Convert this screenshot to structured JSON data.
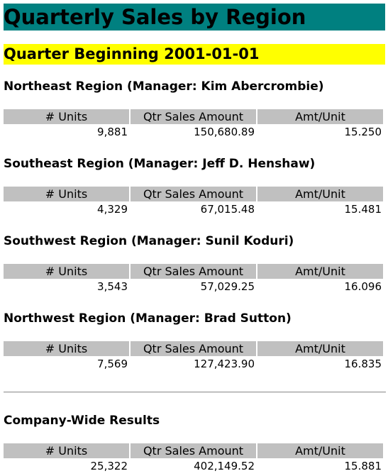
{
  "title": "Quarterly Sales by Region",
  "quarter": "Quarter Beginning 2001-01-01",
  "columns": [
    "# Units",
    "Qtr Sales Amount",
    "Amt/Unit"
  ],
  "regions": [
    {
      "heading": "Northeast Region (Manager: Kim Abercrombie)",
      "units": "9,881",
      "amount": "150,680.89",
      "per_unit": "15.250"
    },
    {
      "heading": "Southeast Region (Manager: Jeff D. Henshaw)",
      "units": "4,329",
      "amount": "67,015.48",
      "per_unit": "15.481"
    },
    {
      "heading": "Southwest Region (Manager: Sunil Koduri)",
      "units": "3,543",
      "amount": "57,029.25",
      "per_unit": "16.096"
    },
    {
      "heading": "Northwest Region (Manager: Brad Sutton)",
      "units": "7,569",
      "amount": "127,423.90",
      "per_unit": "16.835"
    }
  ],
  "company": {
    "heading": "Company-Wide Results",
    "units": "25,322",
    "amount": "402,149.52",
    "per_unit": "15.881"
  }
}
